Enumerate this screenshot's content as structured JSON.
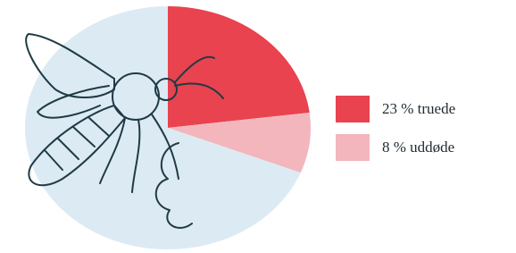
{
  "chart_data": {
    "type": "pie",
    "categories": [
      "23 % truede",
      "8 % uddøde",
      null
    ],
    "values": [
      23,
      8,
      69
    ],
    "colors": [
      "#e8434f",
      "#f3b6bd",
      "#dceaf4"
    ]
  }
}
